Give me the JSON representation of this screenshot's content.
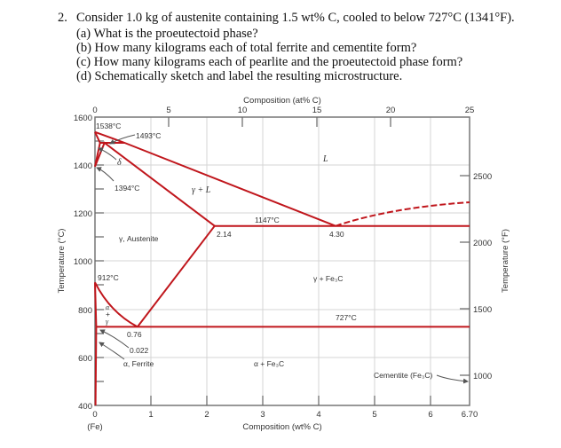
{
  "question": {
    "number": "2.",
    "stem": "Consider 1.0 kg of austenite containing 1.5 wt% C, cooled to below 727°C (1341°F).",
    "parts": [
      "(a) What is the proeutectoid phase?",
      "(b) How many kilograms each of total ferrite and cementite form?",
      "(c) How many kilograms each of pearlite and the proeutectoid phase form?",
      "(d) Schematically sketch and label the resulting microstructure."
    ]
  },
  "diagram": {
    "title_top": "Composition (at% C)",
    "xlabel": "Composition (wt% C)",
    "ylabel_left": "Temperature (°C)",
    "ylabel_right": "Temperature (°F)",
    "top_ticks": [
      "0",
      "5",
      "10",
      "15",
      "20",
      "25"
    ],
    "bottom_ticks": [
      "0",
      "1",
      "2",
      "3",
      "4",
      "5",
      "6",
      "6.70"
    ],
    "bottom_fe": "(Fe)",
    "left_ticks": [
      "1600",
      "1400",
      "1200",
      "1000",
      "800",
      "600",
      "400"
    ],
    "right_ticks": [
      "2500",
      "2000",
      "1500",
      "1000"
    ],
    "labels": {
      "t1538": "1538°C",
      "t1493": "1493°C",
      "delta": "δ",
      "t1394": "1394°C",
      "gamma_l": "γ + L",
      "liquid": "L",
      "t1147": "1147°C",
      "c214": "2.14",
      "c430": "4.30",
      "austenite": "γ, Austenite",
      "t912": "912°C",
      "gamma_fe3c": "γ + Fe₃C",
      "t727": "727°C",
      "alpha_gamma_a": "α",
      "alpha_gamma_plus": "+",
      "alpha_gamma_g": "γ",
      "c076": "0.76",
      "c0022": "0.022",
      "ferrite": "α, Ferrite",
      "alpha_fe3c": "α + Fe₃C",
      "cementite": "Cementite (Fe₃C)"
    },
    "line_color": "#c0161c"
  }
}
